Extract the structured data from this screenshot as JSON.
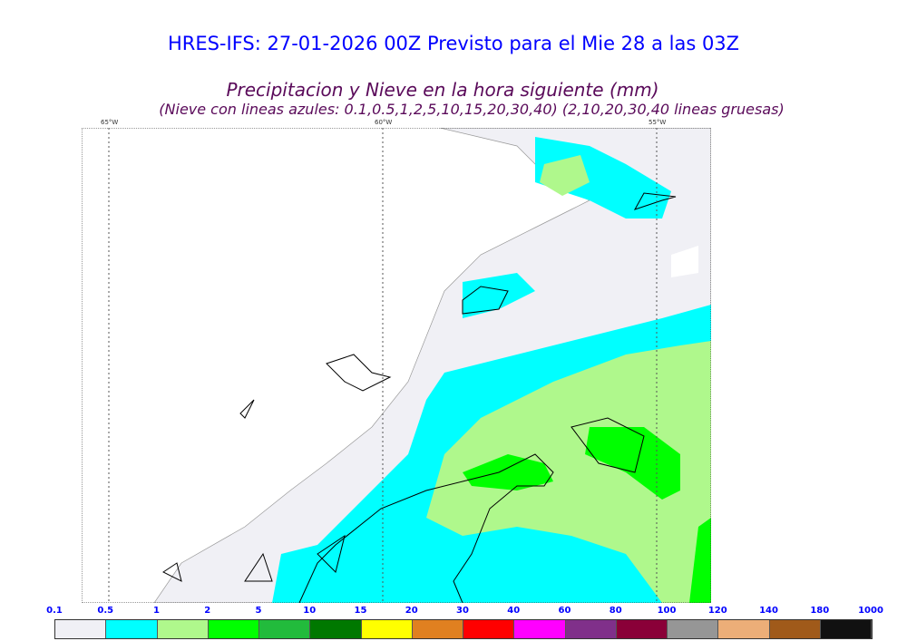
{
  "title": "HRES-IFS: 27-01-2026 00Z Previsto para el Mie 28 a las 03Z",
  "subtitle": "Precipitacion y Nieve en la hora siguiente (mm)",
  "subtitle2": "(Nieve con lineas azules: 0.1,0.5,1,2,5,10,15,20,30,40)  (2,10,20,30,40 lineas gruesas)",
  "map": {
    "longitudes": [
      "65°W",
      "60°W",
      "55°W"
    ]
  },
  "legend": {
    "labels": [
      "0.1",
      "0.5",
      "1",
      "2",
      "5",
      "10",
      "15",
      "20",
      "30",
      "40",
      "60",
      "80",
      "100",
      "120",
      "140",
      "180",
      "1000"
    ],
    "colors": [
      "#f0f0f5",
      "#00ffff",
      "#aff88c",
      "#00ff00",
      "#22bb3c",
      "#007800",
      "#ffff00",
      "#e08020",
      "#ff0000",
      "#ff00ff",
      "#80308a",
      "#8a0038",
      "#969696",
      "#ecae78",
      "#a05a1a",
      "#111111"
    ]
  }
}
